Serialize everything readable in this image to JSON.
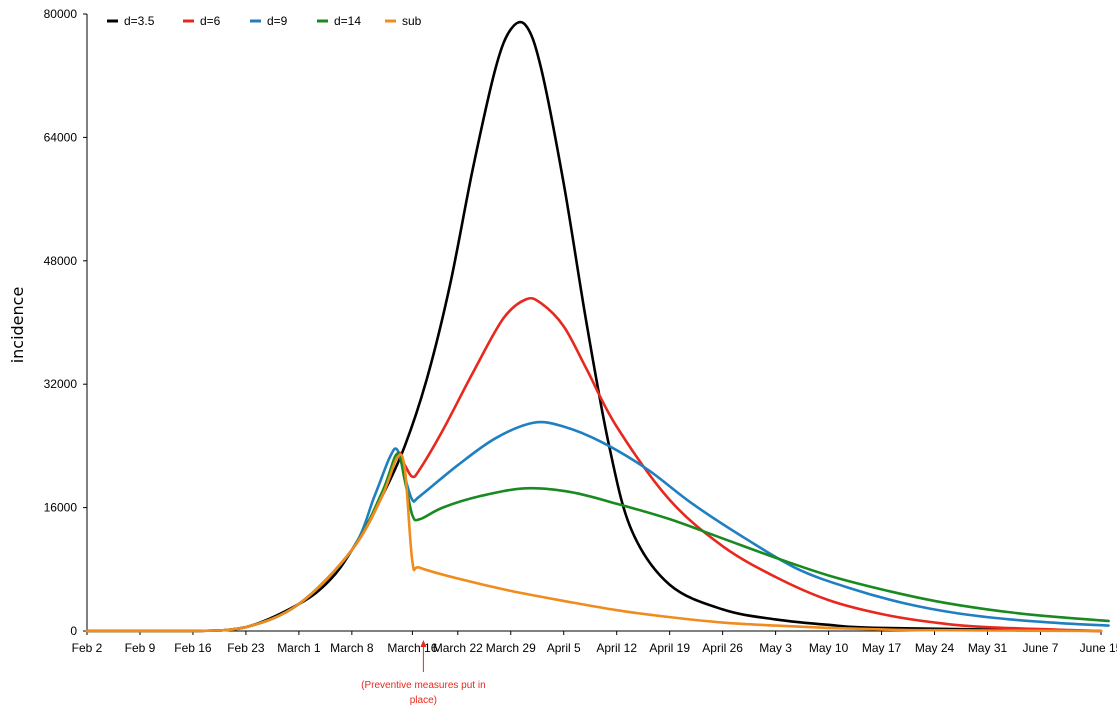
{
  "chart_data": {
    "type": "line",
    "ylabel": "incidence",
    "xlabel": "",
    "ylim": [
      0,
      80000
    ],
    "yticks": [
      0,
      16000,
      32000,
      48000,
      64000,
      80000
    ],
    "grid": false,
    "legend_position": "top-left",
    "x_tick_labels": [
      "Feb 2",
      "Feb 9",
      "Feb 16",
      "Feb 23",
      "March 1",
      "March 8",
      "March 16",
      "March 22",
      "March 29",
      "April 5",
      "April 12",
      "April 19",
      "April 26",
      "May 3",
      "May 10",
      "May 17",
      "May 24",
      "May 31",
      "June 7",
      "June 15"
    ],
    "x_tick_dates": [
      "2020-02-02",
      "2020-02-09",
      "2020-02-16",
      "2020-02-23",
      "2020-03-01",
      "2020-03-08",
      "2020-03-16",
      "2020-03-22",
      "2020-03-29",
      "2020-04-05",
      "2020-04-12",
      "2020-04-19",
      "2020-04-26",
      "2020-05-03",
      "2020-05-10",
      "2020-05-17",
      "2020-05-24",
      "2020-05-31",
      "2020-06-07",
      "2020-06-15"
    ],
    "annotation": {
      "lines": [
        "(Preventive measures put in",
        "place)"
      ],
      "date": "2020-03-16",
      "color": "#e8281e"
    },
    "series": [
      {
        "name": "d=3.5",
        "color": "#000000",
        "points": [
          [
            "2020-02-02",
            0
          ],
          [
            "2020-02-16",
            0
          ],
          [
            "2020-02-23",
            500
          ],
          [
            "2020-03-01",
            3500
          ],
          [
            "2020-03-05",
            6500
          ],
          [
            "2020-03-08",
            10500
          ],
          [
            "2020-03-12",
            17500
          ],
          [
            "2020-03-15",
            24000
          ],
          [
            "2020-03-18",
            33000
          ],
          [
            "2020-03-21",
            45000
          ],
          [
            "2020-03-24",
            60000
          ],
          [
            "2020-03-27",
            73000
          ],
          [
            "2020-03-29",
            78000
          ],
          [
            "2020-03-31",
            78500
          ],
          [
            "2020-04-02",
            73000
          ],
          [
            "2020-04-05",
            58000
          ],
          [
            "2020-04-08",
            40000
          ],
          [
            "2020-04-11",
            24000
          ],
          [
            "2020-04-14",
            13000
          ],
          [
            "2020-04-19",
            6000
          ],
          [
            "2020-04-26",
            2800
          ],
          [
            "2020-05-03",
            1500
          ],
          [
            "2020-05-10",
            800
          ],
          [
            "2020-05-17",
            400
          ],
          [
            "2020-06-15",
            0
          ]
        ]
      },
      {
        "name": "d=6",
        "color": "#e8281e",
        "points": [
          [
            "2020-02-02",
            0
          ],
          [
            "2020-02-16",
            0
          ],
          [
            "2020-02-23",
            500
          ],
          [
            "2020-03-01",
            3500
          ],
          [
            "2020-03-08",
            10500
          ],
          [
            "2020-03-12",
            17500
          ],
          [
            "2020-03-14",
            23000
          ],
          [
            "2020-03-15",
            21500
          ],
          [
            "2020-03-16",
            20000
          ],
          [
            "2020-03-17",
            21000
          ],
          [
            "2020-03-20",
            26000
          ],
          [
            "2020-03-24",
            33500
          ],
          [
            "2020-03-28",
            40500
          ],
          [
            "2020-03-31",
            43000
          ],
          [
            "2020-04-02",
            42500
          ],
          [
            "2020-04-05",
            39500
          ],
          [
            "2020-04-08",
            34000
          ],
          [
            "2020-04-12",
            26500
          ],
          [
            "2020-04-19",
            17000
          ],
          [
            "2020-04-26",
            11000
          ],
          [
            "2020-05-03",
            7000
          ],
          [
            "2020-05-10",
            4000
          ],
          [
            "2020-05-17",
            2200
          ],
          [
            "2020-05-24",
            1100
          ],
          [
            "2020-05-31",
            500
          ],
          [
            "2020-06-15",
            0
          ]
        ]
      },
      {
        "name": "d=9",
        "color": "#1f7fc1",
        "points": [
          [
            "2020-02-02",
            0
          ],
          [
            "2020-02-16",
            0
          ],
          [
            "2020-02-23",
            500
          ],
          [
            "2020-03-01",
            3500
          ],
          [
            "2020-03-08",
            10500
          ],
          [
            "2020-03-11",
            17500
          ],
          [
            "2020-03-13",
            22500
          ],
          [
            "2020-03-14",
            23500
          ],
          [
            "2020-03-15",
            20000
          ],
          [
            "2020-03-16",
            17000
          ],
          [
            "2020-03-17",
            17500
          ],
          [
            "2020-03-22",
            21500
          ],
          [
            "2020-03-27",
            25000
          ],
          [
            "2020-04-01",
            27000
          ],
          [
            "2020-04-05",
            26500
          ],
          [
            "2020-04-10",
            24500
          ],
          [
            "2020-04-16",
            21000
          ],
          [
            "2020-04-22",
            16500
          ],
          [
            "2020-04-29",
            12000
          ],
          [
            "2020-05-06",
            8000
          ],
          [
            "2020-05-13",
            5500
          ],
          [
            "2020-05-20",
            3600
          ],
          [
            "2020-05-27",
            2300
          ],
          [
            "2020-06-03",
            1500
          ],
          [
            "2020-06-10",
            1000
          ],
          [
            "2020-06-16",
            700
          ]
        ]
      },
      {
        "name": "d=14",
        "color": "#198a1f",
        "points": [
          [
            "2020-02-02",
            0
          ],
          [
            "2020-02-16",
            0
          ],
          [
            "2020-02-23",
            500
          ],
          [
            "2020-03-01",
            3500
          ],
          [
            "2020-03-08",
            10500
          ],
          [
            "2020-03-12",
            18000
          ],
          [
            "2020-03-14",
            23000
          ],
          [
            "2020-03-15",
            19500
          ],
          [
            "2020-03-16",
            15000
          ],
          [
            "2020-03-17",
            14500
          ],
          [
            "2020-03-20",
            16000
          ],
          [
            "2020-03-25",
            17500
          ],
          [
            "2020-03-31",
            18500
          ],
          [
            "2020-04-06",
            18000
          ],
          [
            "2020-04-12",
            16500
          ],
          [
            "2020-04-19",
            14500
          ],
          [
            "2020-04-26",
            12000
          ],
          [
            "2020-05-03",
            9500
          ],
          [
            "2020-05-10",
            7200
          ],
          [
            "2020-05-17",
            5400
          ],
          [
            "2020-05-24",
            3900
          ],
          [
            "2020-05-31",
            2800
          ],
          [
            "2020-06-07",
            2000
          ],
          [
            "2020-06-16",
            1300
          ]
        ]
      },
      {
        "name": "sub",
        "color": "#f08c1e",
        "points": [
          [
            "2020-02-02",
            0
          ],
          [
            "2020-02-16",
            0
          ],
          [
            "2020-02-23",
            500
          ],
          [
            "2020-03-01",
            3500
          ],
          [
            "2020-03-08",
            10500
          ],
          [
            "2020-03-12",
            17500
          ],
          [
            "2020-03-14",
            22500
          ],
          [
            "2020-03-15",
            21000
          ],
          [
            "2020-03-16",
            9000
          ],
          [
            "2020-03-17",
            8200
          ],
          [
            "2020-03-22",
            6800
          ],
          [
            "2020-03-29",
            5200
          ],
          [
            "2020-04-05",
            3900
          ],
          [
            "2020-04-12",
            2700
          ],
          [
            "2020-04-19",
            1800
          ],
          [
            "2020-04-26",
            1100
          ],
          [
            "2020-05-03",
            700
          ],
          [
            "2020-05-10",
            400
          ],
          [
            "2020-05-17",
            200
          ],
          [
            "2020-05-24",
            100
          ],
          [
            "2020-06-15",
            0
          ]
        ]
      }
    ]
  }
}
